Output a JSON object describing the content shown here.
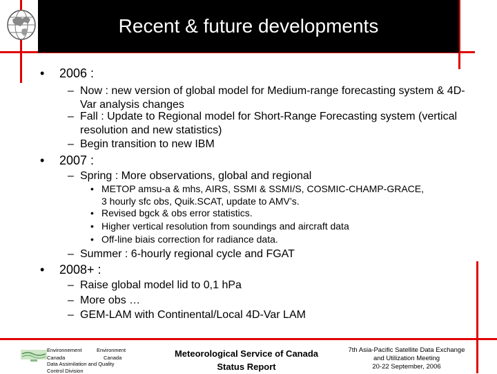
{
  "slide": {
    "title": "Recent & future developments",
    "items": [
      {
        "bullet": "•",
        "text": "2006 :",
        "children": [
          {
            "dash": "–",
            "text": "Now : new version of global model for Medium-range forecasting system & 4D-Var analysis changes"
          },
          {
            "dash": "–",
            "text": "Fall : Update to Regional model for Short-Range Forecasting system (vertical resolution and new statistics)"
          },
          {
            "dash": "–",
            "text": "Begin transition to new IBM"
          }
        ]
      },
      {
        "bullet": "•",
        "text": "2007 :",
        "children": [
          {
            "dash": "–",
            "text": "Spring : More observations, global and regional",
            "children": [
              {
                "bullet": "•",
                "text": "METOP amsu-a & mhs, AIRS, SSMI & SSMI/S, COSMIC-CHAMP-GRACE, 3 hourly sfc obs, Quik.SCAT, update to AMV’s."
              },
              {
                "bullet": "•",
                "text": "Revised bgck & obs error statistics."
              },
              {
                "bullet": "•",
                "text": "Higher vertical resolution from soundings and aircraft data"
              },
              {
                "bullet": "•",
                "text": "Off-line biais correction for radiance data."
              }
            ]
          },
          {
            "dash": "–",
            "text": "Summer : 6-hourly regional cycle and FGAT"
          }
        ]
      },
      {
        "bullet": "•",
        "text": "2008+ :",
        "children": [
          {
            "dash": "–",
            "text": "Raise global model lid to 0,1 hPa"
          },
          {
            "dash": "–",
            "text": "More obs …"
          },
          {
            "dash": "–",
            "text": "GEM-LAM with Continental/Local 4D-Var LAM"
          }
        ]
      }
    ]
  },
  "footer": {
    "left": {
      "env1": "Environnement",
      "env2": "Environment",
      "canada1": "Canada",
      "canada2": "Canada",
      "division1": "Data Assimilation and Quality",
      "division2": "Control Division"
    },
    "center": {
      "line1": "Meteorological Service of Canada",
      "line2": "Status Report"
    },
    "right": {
      "line1": "7th Asia-Pacific  Satellite Data Exchange",
      "line2": "and Utilization Meeting",
      "line3": "20-22 September, 2006"
    }
  },
  "colors": {
    "accent_red": "#e00000",
    "title_bg": "#000000"
  }
}
